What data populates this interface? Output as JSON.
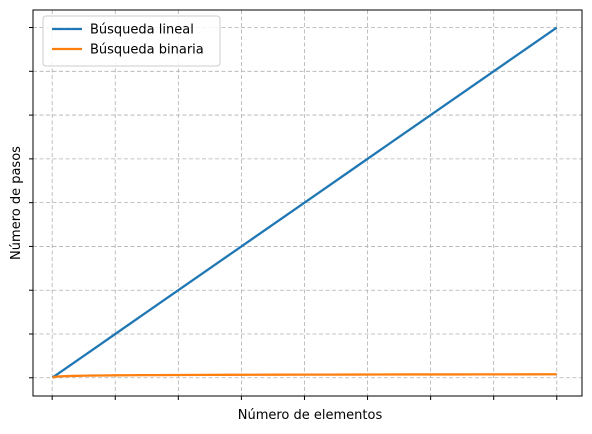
{
  "chart_data": {
    "type": "line",
    "xlabel": "Número de elementos",
    "ylabel": "Número de pasos",
    "x": [
      1,
      5,
      10,
      20,
      30,
      40,
      50,
      60,
      70,
      80,
      90,
      100,
      125,
      150,
      175,
      200,
      250,
      300,
      350,
      400,
      450,
      500,
      550,
      600,
      650,
      700,
      750,
      800,
      850,
      900,
      950,
      1000
    ],
    "series": [
      {
        "name": "Búsqueda lineal",
        "color": "#1f77b4",
        "values": [
          1,
          5,
          10,
          20,
          30,
          40,
          50,
          60,
          70,
          80,
          90,
          100,
          125,
          150,
          175,
          200,
          250,
          300,
          350,
          400,
          450,
          500,
          550,
          600,
          650,
          700,
          750,
          800,
          850,
          900,
          950,
          1000
        ]
      },
      {
        "name": "Búsqueda binaria",
        "color": "#ff7f0e",
        "values": [
          0,
          2.3,
          3.3,
          4.3,
          4.9,
          5.3,
          5.6,
          5.9,
          6.1,
          6.3,
          6.5,
          6.6,
          7.0,
          7.2,
          7.5,
          7.6,
          8.0,
          8.2,
          8.5,
          8.6,
          8.8,
          9.0,
          9.1,
          9.2,
          9.3,
          9.5,
          9.6,
          9.6,
          9.7,
          9.8,
          9.9,
          10.0
        ]
      }
    ],
    "xlim": [
      -38,
      1050
    ],
    "ylim": [
      -52,
      1050
    ],
    "x_ticks": [
      0,
      125,
      250,
      375,
      500,
      625,
      750,
      875,
      1000
    ],
    "y_ticks": [
      0,
      125,
      250,
      375,
      500,
      625,
      750,
      875,
      1000
    ],
    "tick_labels_visible": false,
    "grid": true,
    "legend_position": "top-left"
  }
}
